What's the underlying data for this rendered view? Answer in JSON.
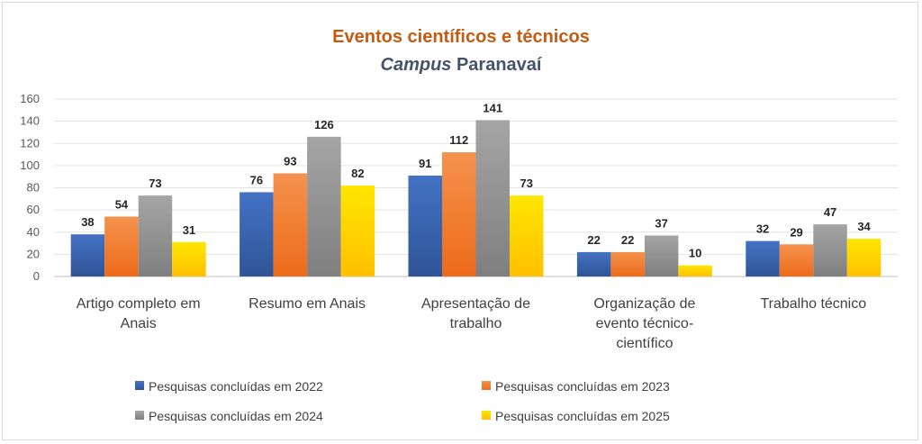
{
  "chart_data": {
    "type": "bar",
    "title": "Eventos científicos e técnicos",
    "subtitle_italic": "Campus",
    "subtitle_rest": " Paranavaí",
    "categories": [
      [
        "Artigo completo em",
        "Anais"
      ],
      [
        "Resumo em Anais"
      ],
      [
        "Apresentação de",
        "trabalho"
      ],
      [
        "Organização de",
        "evento técnico-",
        "científico"
      ],
      [
        "Trabalho técnico"
      ]
    ],
    "series": [
      {
        "name": "Pesquisas concluídas em 2022",
        "values": [
          38,
          76,
          91,
          22,
          32
        ],
        "color": "#4472c4",
        "color_dark": "#2f5597"
      },
      {
        "name": "Pesquisas concluídas em 2023",
        "values": [
          54,
          93,
          112,
          22,
          29
        ],
        "color": "#f4924d",
        "color_dark": "#ed6b1a"
      },
      {
        "name": "Pesquisas concluídas em 2024",
        "values": [
          73,
          126,
          141,
          37,
          47
        ],
        "color": "#a5a5a5",
        "color_dark": "#7f7f7f"
      },
      {
        "name": "Pesquisas concluídas em 2025",
        "values": [
          31,
          82,
          73,
          10,
          34
        ],
        "color": "#ffe600",
        "color_dark": "#ffc000"
      }
    ],
    "ylim": [
      0,
      160
    ],
    "yticks": [
      0,
      20,
      40,
      60,
      80,
      100,
      120,
      140,
      160
    ],
    "grid": true,
    "legend_position": "bottom"
  }
}
